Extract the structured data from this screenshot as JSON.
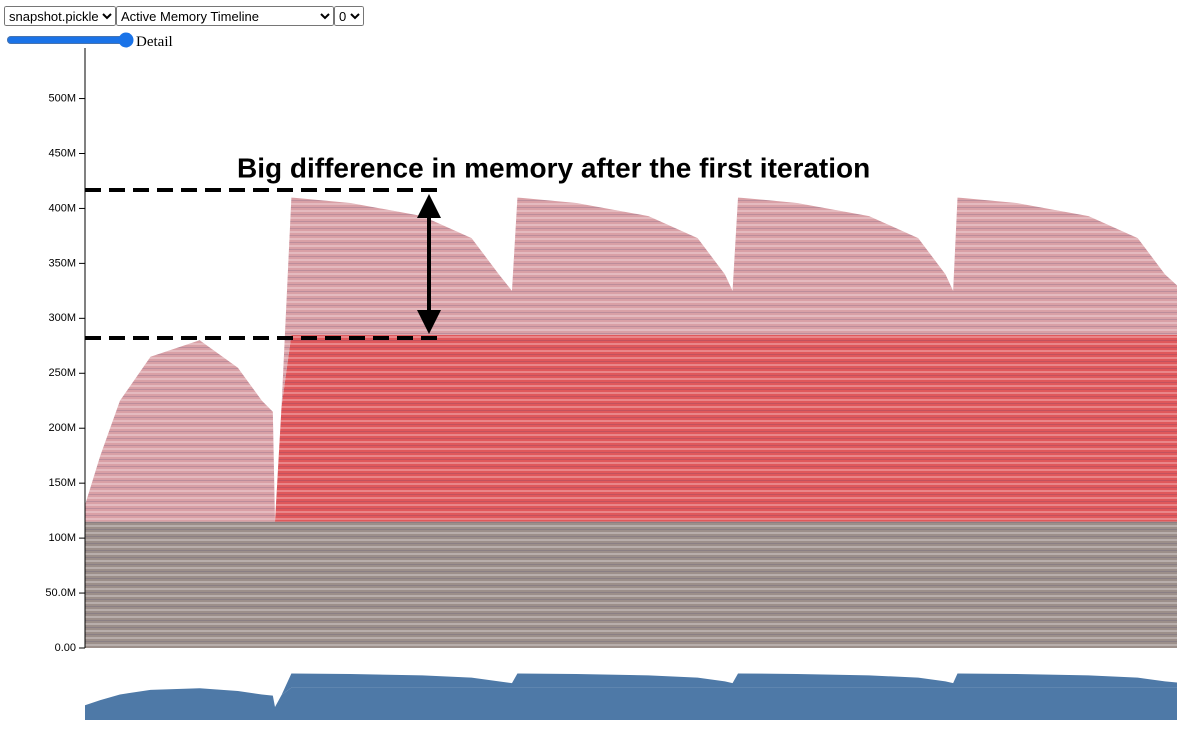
{
  "controls": {
    "file_select": "snapshot.pickle",
    "view_select": "Active Memory Timeline",
    "device_select": "0",
    "slider_label": "Detail"
  },
  "chart_data": {
    "type": "area",
    "annotation": "Big difference in memory after the first iteration",
    "x": [
      0,
      1.4,
      3.2,
      6,
      10.5,
      14,
      16.2,
      17.2,
      17.4,
      18,
      18.9,
      24.3,
      30.9,
      35.4,
      37.9,
      39.1,
      39.6,
      45,
      51.6,
      56.1,
      58.6,
      59.3,
      59.8,
      65.2,
      71.8,
      76.3,
      78.8,
      79.5,
      79.9,
      85.3,
      91.9,
      96.4,
      98.9,
      100
    ],
    "xlim": [
      0,
      100
    ],
    "ylim": [
      0,
      546
    ],
    "yticks": [
      {
        "value": 0,
        "label": "0.00"
      },
      {
        "value": 50,
        "label": "50.0M"
      },
      {
        "value": 100,
        "label": "100M"
      },
      {
        "value": 150,
        "label": "150M"
      },
      {
        "value": 200,
        "label": "200M"
      },
      {
        "value": 250,
        "label": "250M"
      },
      {
        "value": 300,
        "label": "300M"
      },
      {
        "value": 350,
        "label": "350M"
      },
      {
        "value": 400,
        "label": "400M"
      },
      {
        "value": 450,
        "label": "450M"
      },
      {
        "value": 500,
        "label": "500M"
      }
    ],
    "overview_color": "#4e79a7",
    "series": [
      {
        "color": "#9c8f8a",
        "values": [
          115,
          115,
          115,
          115,
          115,
          115,
          115,
          115,
          115,
          115,
          115,
          115,
          115,
          115,
          115,
          115,
          115,
          115,
          115,
          115,
          115,
          115,
          115,
          115,
          115,
          115,
          115,
          115,
          115,
          115,
          115,
          115,
          115,
          115
        ]
      },
      {
        "color": "#e0585b",
        "values": [
          0,
          0,
          0,
          0,
          0,
          0,
          0,
          0,
          0,
          105,
          170,
          170,
          170,
          170,
          170,
          170,
          170,
          170,
          170,
          170,
          170,
          170,
          170,
          170,
          170,
          170,
          170,
          170,
          170,
          170,
          170,
          170,
          170,
          170
        ]
      },
      {
        "color": "#d9a0a6",
        "values": [
          15,
          60,
          110,
          150,
          165,
          140,
          110,
          100,
          0,
          0,
          125,
          120,
          108,
          88,
          55,
          40,
          125,
          120,
          108,
          88,
          55,
          40,
          125,
          120,
          108,
          88,
          55,
          40,
          125,
          120,
          108,
          88,
          55,
          45
        ]
      }
    ]
  }
}
